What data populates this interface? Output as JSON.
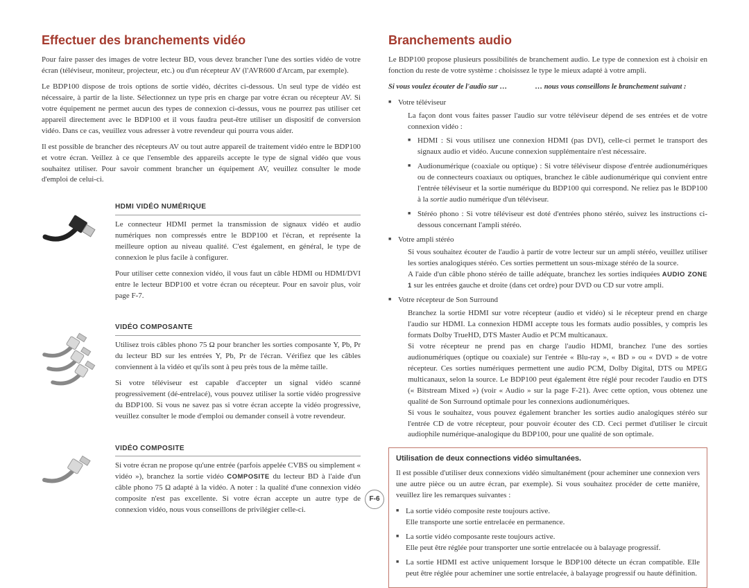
{
  "page_number": "F-6",
  "left": {
    "title": "Effectuer des branchements vidéo",
    "intro": [
      "Pour faire passer des images de votre lecteur BD, vous devez brancher l'une des sorties vidéo de votre écran (téléviseur, moniteur, projecteur, etc.) ou d'un récepteur AV (l'AVR600 d'Arcam, par exemple).",
      "Le BDP100 dispose de trois options de sortie vidéo, décrites ci-dessous. Un seul type de vidéo est nécessaire, à partir de la liste. Sélectionnez un type pris en charge par votre écran ou récepteur AV. Si votre équipement ne permet aucun des types de connexion ci-dessus, vous ne pourrez pas utiliser cet appareil directement avec le BDP100 et il vous faudra peut-être utiliser un dispositif de conversion vidéo. Dans ce cas, veuillez vous adresser à votre revendeur qui pourra vous aider.",
      "Il est possible de brancher des récepteurs AV ou tout autre appareil de traitement vidéo entre le BDP100 et votre écran. Veillez à ce que l'ensemble des appareils accepte le type de signal vidéo que vous souhaitez utiliser. Pour savoir comment brancher un équipement AV, veuillez consulter le mode d'emploi de celui-ci."
    ],
    "sections": [
      {
        "heading": "HDMI VIDÉO NUMÉRIQUE",
        "paras": [
          "Le connecteur HDMI permet la transmission de signaux vidéo et audio numériques non compressés entre le BDP100 et l'écran, et représente la meilleure option au niveau qualité. C'est également, en général, le type de connexion le plus facile à configurer.",
          "Pour utiliser cette connexion vidéo, il vous faut un câble HDMI ou HDMI/DVI entre le lecteur BDP100 et votre écran ou récepteur. Pour en savoir plus, voir page F-7."
        ]
      },
      {
        "heading": "VIDÉO COMPOSANTE",
        "paras": [
          "Utilisez trois câbles phono 75 Ω pour brancher les sorties composante Y, Pb, Pr du lecteur BD sur les entrées Y, Pb, Pr de l'écran. Vérifiez que les câbles conviennent à la vidéo et qu'ils sont à peu près tous de la même taille.",
          "Si votre téléviseur est capable d'accepter un signal vidéo scanné progressivement (dé-entrelacé), vous pouvez utiliser la sortie vidéo progressive du BDP100. Si vous ne savez pas si votre écran accepte la vidéo progressive, veuillez consulter le mode d'emploi ou demander conseil à votre revendeur."
        ]
      },
      {
        "heading": "VIDÉO COMPOSITE",
        "paras_html": "Si votre écran ne propose qu'une entrée (parfois appelée CVBS ou simplement « vidéo »), branchez la sortie vidéo <span class=\"smallcaps\">COMPOSITE</span> du lecteur BD à l'aide d'un câble phono 75 Ω adapté à la vidéo. A noter : la qualité d'une connexion vidéo composite n'est pas excellente. Si votre écran accepte un autre type de connexion vidéo, nous vous conseillons de privilégier celle-ci."
      }
    ]
  },
  "right": {
    "title": "Branchements audio",
    "intro": "Le BDP100 propose plusieurs possibilités de branchement audio. Le type de connexion est à choisir en fonction du reste de votre système : choisissez le type le mieux adapté à votre ampli.",
    "subhead_left": "Si vous voulez écouter de l'audio sur …",
    "subhead_right": "… nous vous conseillons le branchement suivant :",
    "items": [
      {
        "label": "Votre téléviseur",
        "body": "La façon dont vous faites passer l'audio sur votre téléviseur dépend de ses entrées et de votre connexion vidéo :",
        "sub": [
          "HDMI : Si vous utilisez une connexion HDMI (pas DVI), celle-ci permet le transport des signaux audio et vidéo. Aucune connexion supplémentaire n'est nécessaire.",
          "Audionumérique (coaxiale ou optique) : Si votre téléviseur dispose d'entrée audionumériques ou de connecteurs coaxiaux ou optiques, branchez le câble audionumérique qui convient entre l'entrée téléviseur et la sortie numérique du BDP100 qui correspond. Ne reliez pas le BDP100 à la <em>sortie</em> audio numérique d'un téléviseur.",
          "Stéréo phono : Si votre téléviseur est doté d'entrées phono stéréo, suivez les instructions ci-dessous concernant l'ampli stéréo."
        ]
      },
      {
        "label": "Votre ampli stéréo",
        "body_html": "Si vous souhaitez écouter de l'audio à partir de votre lecteur sur un ampli stéréo, veuillez utiliser les sorties analogiques stéréo. Ces sorties permettent un sous-mixage stéréo de la source.<br>A l'aide d'un câble phono stéréo de taille adéquate, branchez les sorties indiquées <span class=\"smallcaps\">AUDIO ZONE 1</span> sur les entrées gauche et droite (dans cet ordre) pour DVD ou CD sur votre ampli."
      },
      {
        "label": "Votre récepteur de Son Surround",
        "body_html": "Branchez la sortie HDMI sur votre récepteur (audio et vidéo) si le récepteur prend en charge l'audio sur HDMI. La connexion HDMI accepte tous les formats audio possibles, y compris les formats Dolby TrueHD, DTS Master Audio et PCM multicanaux.<br>Si votre récepteur ne prend pas en charge l'audio HDMI, branchez l'une des sorties audionumériques (optique ou coaxiale) sur l'entrée « Blu-ray », « BD » ou « DVD » de votre récepteur. Ces sorties numériques permettent une audio PCM, Dolby Digital, DTS ou MPEG multicanaux, selon la source. Le BDP100 peut également être réglé pour recoder l'audio en DTS (« Bitstream Mixed ») (voir « Audio » sur la page F-21). Avec cette option, vous obtenez une qualité de Son Surround optimale pour les connexions audionumériques.<br>Si vous le souhaitez, vous pouvez également brancher les sorties audio analogiques stéréo sur l'entrée CD de votre récepteur, pour pouvoir écouter des CD. Ceci permet d'utiliser le circuit audiophile numérique-analogique du BDP100, pour une qualité de son optimale."
      }
    ],
    "box": {
      "heading": "Utilisation de deux connections vidéo simultanées.",
      "intro": "Il est possible d'utiliser deux connexions vidéo simultanément (pour acheminer une connexion vers une autre pièce ou un autre écran, par exemple). Si vous souhaitez procéder de cette manière, veuillez lire les remarques suivantes :",
      "items": [
        "La sortie vidéo composite reste toujours active.<br>Elle transporte une sortie entrelacée en permanence.",
        "La sortie vidéo composante reste toujours active.<br>Elle peut être réglée pour transporter une sortie entrelacée ou à balayage progressif.",
        "La sortie HDMI est active uniquement lorsque le BDP100 détecte un écran compatible. Elle peut être réglée pour acheminer une sortie entrelacée, à balayage progressif ou haute définition."
      ]
    }
  }
}
